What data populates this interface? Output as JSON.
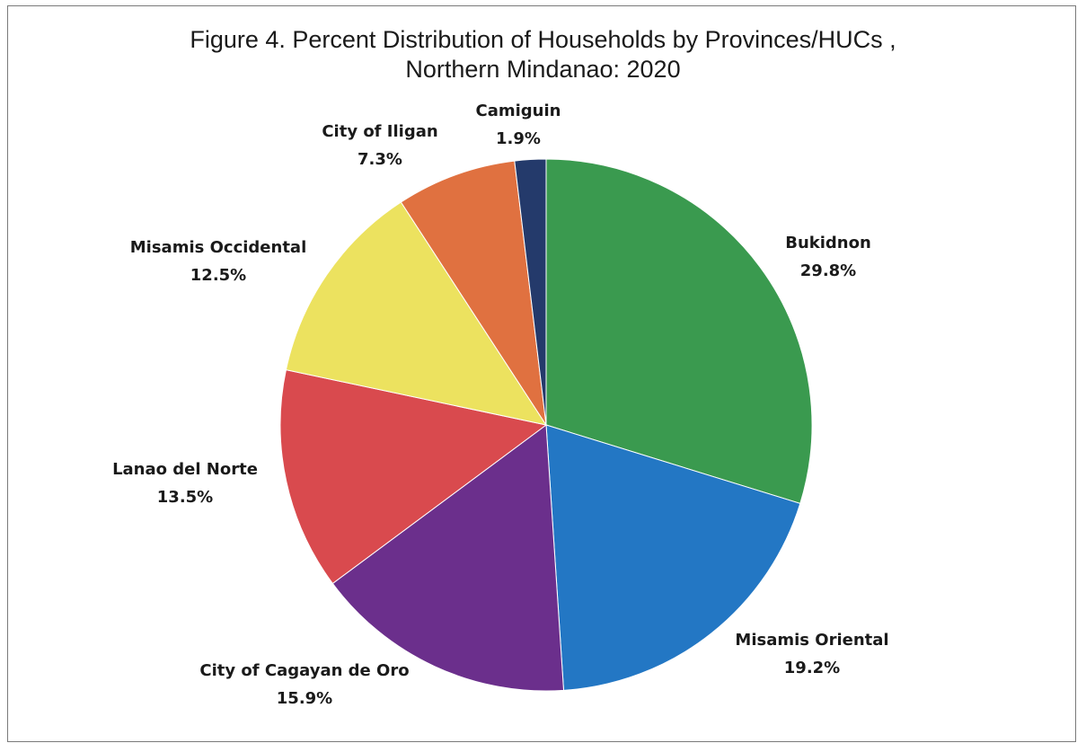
{
  "chart_data": {
    "type": "pie",
    "title_line1": "Figure 4. Percent Distribution of Households by Provinces/HUCs ,",
    "title_line2": "Northern Mindanao: 2020",
    "slices": [
      {
        "name": "Bukidnon",
        "label": "29.8%",
        "value": 29.8,
        "color": "#3a9a4f"
      },
      {
        "name": "Misamis Oriental",
        "label": "19.2%",
        "value": 19.2,
        "color": "#2377c4"
      },
      {
        "name": "City of Cagayan de Oro",
        "label": "15.9%",
        "value": 15.9,
        "color": "#6b2f8c"
      },
      {
        "name": "Lanao del Norte",
        "label": "13.5%",
        "value": 13.5,
        "color": "#d94a4e"
      },
      {
        "name": "Misamis Occidental",
        "label": "12.5%",
        "value": 12.5,
        "color": "#ece25f"
      },
      {
        "name": "City of Iligan",
        "label": "7.3%",
        "value": 7.3,
        "color": "#e07140"
      },
      {
        "name": "Camiguin",
        "label": "1.9%",
        "value": 1.9,
        "color": "#243a6b"
      }
    ],
    "start": "12 o'clock",
    "direction": "clockwise",
    "legend": "none"
  }
}
